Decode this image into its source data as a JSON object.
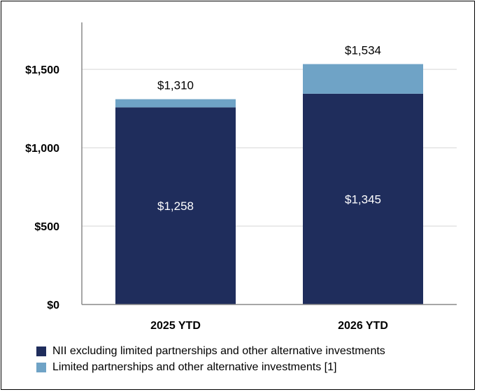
{
  "chart_data": {
    "type": "bar",
    "stacked": true,
    "categories": [
      "2025 YTD",
      "2026 YTD"
    ],
    "series": [
      {
        "name": "NII excluding limited partnerships and other alternative investments",
        "values": [
          1258,
          1345
        ],
        "value_labels": [
          "$1,258",
          "$1,345"
        ],
        "color": "#1f2d5c"
      },
      {
        "name": "Limited partnerships and other alternative investments [1]",
        "values": [
          52,
          189
        ],
        "color": "#6fa3c6"
      }
    ],
    "totals": [
      1310,
      1534
    ],
    "total_labels": [
      "$1,310",
      "$1,534"
    ],
    "ylim": [
      0,
      1800
    ],
    "yticks": [
      0,
      500,
      1000,
      1500
    ],
    "ytick_labels": [
      "$0",
      "$500",
      "$1,000",
      "$1,500"
    ],
    "grid": true,
    "legend_position": "bottom"
  }
}
